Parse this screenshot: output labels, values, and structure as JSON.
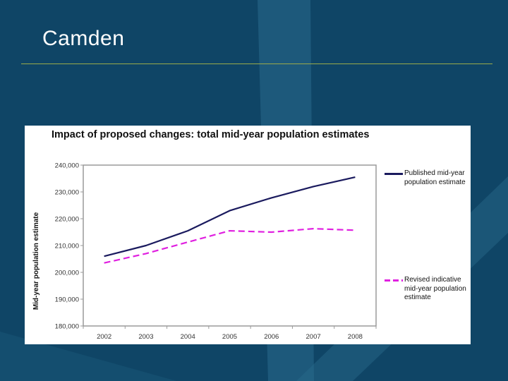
{
  "slide": {
    "title": "Camden"
  },
  "chart_data": {
    "type": "line",
    "title": "Impact of proposed changes: total mid-year population estimates",
    "xlabel": "",
    "ylabel": "Mid-year population estimate",
    "categories": [
      "2002",
      "2003",
      "2004",
      "2005",
      "2006",
      "2007",
      "2008"
    ],
    "ylim": [
      180000,
      240000
    ],
    "yticks": [
      180000,
      190000,
      200000,
      210000,
      220000,
      230000,
      240000
    ],
    "ytick_labels": [
      "180,000",
      "190,000",
      "200,000",
      "210,000",
      "220,000",
      "230,000",
      "240,000"
    ],
    "grid": false,
    "legend_position": "right",
    "series": [
      {
        "name": "Published mid-year population estimate",
        "values": [
          206000,
          210000,
          215500,
          223000,
          227800,
          232000,
          235500
        ],
        "color": "#1a1a5e",
        "style": "solid"
      },
      {
        "name": "Revised indicative mid-year population estimate",
        "values": [
          203500,
          207000,
          211300,
          215500,
          215000,
          216300,
          215700
        ],
        "color": "#e020e0",
        "style": "dashed"
      }
    ]
  }
}
